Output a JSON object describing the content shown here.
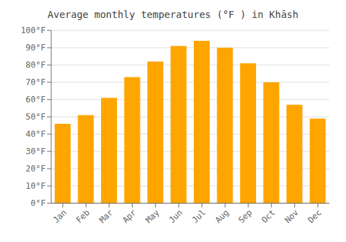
{
  "chart_data": {
    "type": "bar",
    "title": "Average monthly temperatures (°F ) in Khāsh",
    "categories": [
      "Jan",
      "Feb",
      "Mar",
      "Apr",
      "May",
      "Jun",
      "Jul",
      "Aug",
      "Sep",
      "Oct",
      "Nov",
      "Dec"
    ],
    "values": [
      46,
      51,
      61,
      73,
      82,
      91,
      94,
      90,
      81,
      70,
      57,
      49
    ],
    "color": "#FFA500",
    "ylim": [
      0,
      100
    ],
    "yticks": [
      {
        "value": 0,
        "label": "0°F"
      },
      {
        "value": 10,
        "label": "10°F"
      },
      {
        "value": 20,
        "label": "20°F"
      },
      {
        "value": 30,
        "label": "30°F"
      },
      {
        "value": 40,
        "label": "40°F"
      },
      {
        "value": 50,
        "label": "50°F"
      },
      {
        "value": 60,
        "label": "60°F"
      },
      {
        "value": 70,
        "label": "70°F"
      },
      {
        "value": 80,
        "label": "80°F"
      },
      {
        "value": 90,
        "label": "90°F"
      },
      {
        "value": 100,
        "label": "100°F"
      }
    ],
    "grid": true
  }
}
